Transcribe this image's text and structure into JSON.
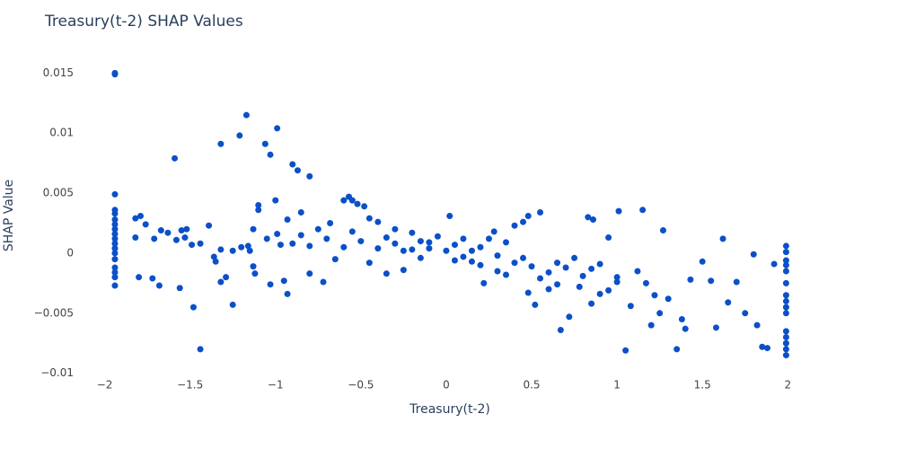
{
  "chart_data": {
    "type": "scatter",
    "title": "Treasury(t-2) SHAP Values",
    "x_label": "Treasury(t-2)",
    "y_label": "SHAP Value",
    "color": "#0a50c8",
    "grid": false,
    "xlim": [
      -2.35,
      2.54
    ],
    "ylim": [
      -0.0107,
      0.0166
    ],
    "xticks": [
      {
        "value": -2,
        "label": "−2"
      },
      {
        "value": -1.5,
        "label": "−1.5"
      },
      {
        "value": -1,
        "label": "−1"
      },
      {
        "value": -0.5,
        "label": "−0.5"
      },
      0,
      0.5,
      1,
      1.5,
      2
    ],
    "yticks": [
      {
        "value": -0.01,
        "label": "−0.01"
      },
      {
        "value": -0.005,
        "label": "−0.005"
      },
      0,
      0.005,
      0.01,
      0.015
    ],
    "x": [
      -1.94,
      -1.94,
      -1.94,
      -1.94,
      -1.94,
      -1.94,
      -1.94,
      -1.94,
      -1.94,
      -1.94,
      -1.94,
      -1.94,
      -1.94,
      -1.94,
      -1.94,
      -1.94,
      -1.94,
      -1.94,
      -1.82,
      -1.79,
      -1.82,
      -1.76,
      -1.8,
      -1.72,
      -1.71,
      -1.68,
      -1.67,
      -1.63,
      -1.59,
      -1.58,
      -1.56,
      -1.55,
      -1.53,
      -1.52,
      -1.49,
      -1.48,
      -1.44,
      -1.44,
      -1.39,
      -1.36,
      -1.35,
      -1.32,
      -1.32,
      -1.32,
      -1.29,
      -1.25,
      -1.25,
      -1.21,
      -1.2,
      -1.17,
      -1.16,
      -1.13,
      -1.13,
      -1.12,
      -1.1,
      -1.1,
      -1.06,
      -1.03,
      -1.03,
      -0.99,
      -1.0,
      -0.99,
      -0.97,
      -0.95,
      -0.93,
      -0.93,
      -0.9,
      -0.87,
      -0.85,
      -0.8,
      -0.8,
      -0.72,
      -0.68,
      -0.6,
      -0.57,
      -0.55,
      -0.52,
      -0.48,
      -0.45,
      -0.4,
      -0.35,
      -0.3,
      -0.25,
      -0.2,
      -0.15,
      -0.1,
      0.02,
      0.05,
      0.1,
      0.15,
      0.2,
      0.22,
      0.28,
      0.3,
      0.35,
      0.4,
      0.45,
      0.48,
      0.48,
      0.52,
      0.55,
      0.6,
      0.65,
      0.67,
      0.72,
      0.78,
      0.83,
      0.86,
      0.85,
      0.9,
      0.95,
      1.0,
      1.01,
      1.05,
      1.08,
      1.12,
      1.15,
      1.17,
      1.2,
      1.22,
      1.25,
      1.27,
      1.3,
      1.35,
      1.38,
      1.4,
      1.43,
      1.5,
      1.55,
      1.58,
      1.62,
      1.65,
      1.7,
      1.75,
      1.8,
      1.82,
      1.85,
      1.88,
      1.92,
      1.99,
      1.99,
      1.99,
      1.99,
      1.99,
      1.99,
      1.99,
      1.99,
      1.99,
      1.99,
      1.99,
      1.99,
      1.99,
      1.99,
      1.99,
      -0.9,
      -0.8,
      -0.7,
      -0.6,
      -0.5,
      -0.4,
      -0.3,
      -0.2,
      -0.1,
      0.0,
      0.1,
      0.2,
      0.3,
      0.4,
      0.5,
      0.6,
      0.7,
      0.8,
      0.9,
      1.0,
      -0.85,
      -0.75,
      -0.65,
      -0.55,
      -0.45,
      -0.35,
      -0.25,
      -0.15,
      -0.05,
      0.05,
      0.15,
      0.25,
      0.35,
      0.45,
      0.55,
      0.65,
      0.75,
      0.85,
      0.95,
      -1.05,
      -1.15
    ],
    "values": [
      0.015,
      0.0149,
      0.0049,
      0.0036,
      0.0033,
      0.0028,
      0.0024,
      0.002,
      0.0016,
      0.0012,
      0.0008,
      0.0004,
      0.0,
      -0.0005,
      -0.0012,
      -0.0016,
      -0.002,
      -0.0027,
      0.0029,
      0.0031,
      0.0013,
      0.0024,
      -0.002,
      -0.0021,
      0.0012,
      -0.0027,
      0.0019,
      0.0017,
      0.0079,
      0.0011,
      -0.0029,
      0.0019,
      0.0013,
      0.002,
      0.0007,
      -0.0045,
      0.0008,
      -0.008,
      0.0023,
      -0.0003,
      -0.0007,
      0.0091,
      0.0003,
      -0.0024,
      -0.002,
      -0.0043,
      0.0002,
      0.0098,
      0.0005,
      0.0115,
      0.0006,
      0.002,
      -0.0011,
      -0.0017,
      0.004,
      0.0036,
      0.0091,
      0.0082,
      -0.0026,
      0.0104,
      0.0044,
      0.0016,
      0.0007,
      -0.0023,
      -0.0034,
      0.0028,
      0.0074,
      0.0069,
      0.0034,
      0.0064,
      -0.0017,
      -0.0024,
      0.0025,
      0.0044,
      0.0047,
      0.0044,
      0.0041,
      0.0039,
      0.0029,
      0.0026,
      -0.0017,
      0.002,
      -0.0014,
      0.0017,
      0.001,
      0.0004,
      0.0031,
      -0.0006,
      0.0012,
      0.0002,
      -0.001,
      -0.0025,
      0.0018,
      -0.0015,
      0.0009,
      0.0023,
      0.0026,
      0.0031,
      -0.0033,
      -0.0043,
      0.0034,
      -0.003,
      -0.0008,
      -0.0064,
      -0.0053,
      -0.0028,
      0.003,
      0.0028,
      -0.0042,
      -0.0034,
      0.0013,
      -0.002,
      0.0035,
      -0.0081,
      -0.0044,
      -0.0015,
      0.0036,
      -0.0025,
      -0.006,
      -0.0035,
      -0.005,
      0.0019,
      -0.0038,
      -0.008,
      -0.0055,
      -0.0063,
      -0.0022,
      -0.0007,
      -0.0023,
      -0.0062,
      0.0012,
      -0.0041,
      -0.0024,
      -0.005,
      -0.0001,
      -0.006,
      -0.0078,
      -0.0079,
      -0.0009,
      0.0006,
      0.0001,
      -0.0006,
      -0.001,
      -0.0015,
      -0.0025,
      -0.0035,
      -0.004,
      -0.0045,
      -0.005,
      -0.0065,
      -0.007,
      -0.0075,
      -0.008,
      -0.0085,
      0.0008,
      0.0006,
      0.0012,
      0.0005,
      0.001,
      0.0004,
      0.0008,
      0.0003,
      0.0009,
      0.0002,
      -0.0003,
      0.0005,
      -0.0002,
      -0.0008,
      -0.0011,
      -0.0016,
      -0.0012,
      -0.0019,
      -0.0009,
      -0.0024,
      0.0015,
      0.002,
      -0.0005,
      0.0018,
      -0.0008,
      0.0013,
      0.0002,
      -0.0004,
      0.0014,
      0.0007,
      -0.0007,
      0.0012,
      -0.0018,
      -0.0004,
      -0.0021,
      -0.0026,
      -0.0004,
      -0.0013,
      -0.0031,
      0.0012,
      0.0002
    ]
  }
}
